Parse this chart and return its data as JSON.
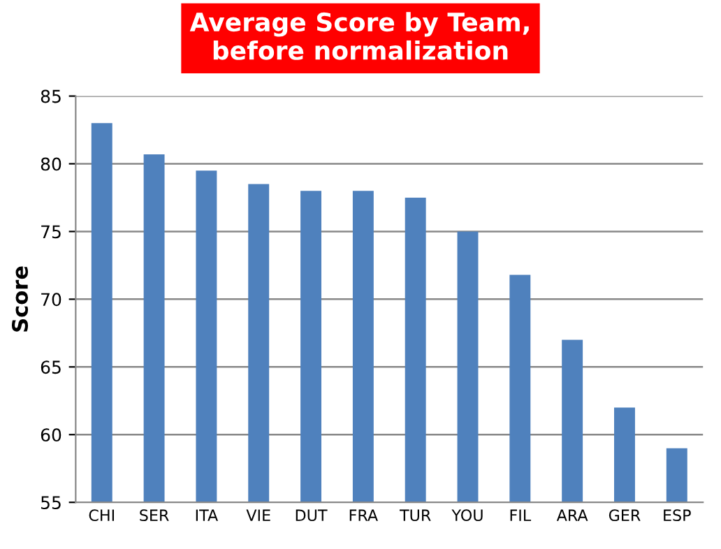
{
  "chart_data": {
    "type": "bar",
    "title": "Average Score by Team,\nbefore normalization",
    "ylabel": "Score",
    "categories": [
      "CHI",
      "SER",
      "ITA",
      "VIE",
      "DUT",
      "FRA",
      "TUR",
      "YOU",
      "FIL",
      "ARA",
      "GER",
      "ESP"
    ],
    "values": [
      83,
      80.7,
      79.5,
      78.5,
      78,
      78,
      77.5,
      75,
      71.8,
      67,
      62,
      59
    ],
    "color": "#4f81bd",
    "ylim": [
      55,
      85
    ],
    "yticks": [
      55,
      60,
      65,
      70,
      75,
      80,
      85
    ],
    "grid": "y",
    "legend": false
  }
}
